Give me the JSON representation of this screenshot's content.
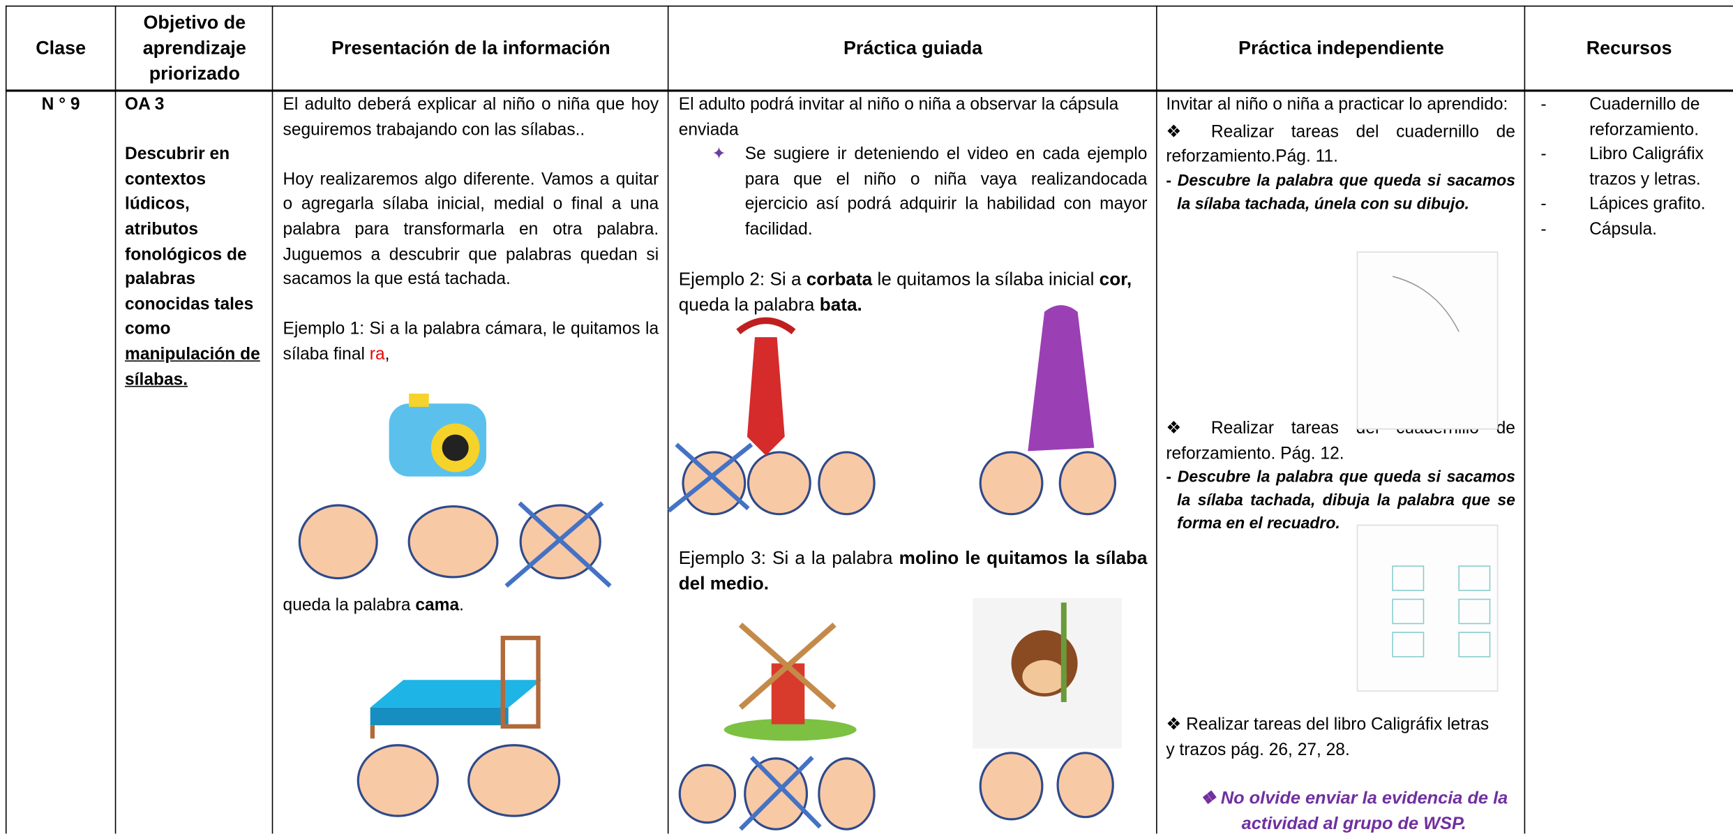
{
  "header": {
    "columns": [
      "Clase",
      "Objetivo de aprendizaje priorizado",
      "Presentación de la información",
      "Práctica guiada",
      "Práctica independiente",
      "Recursos"
    ]
  },
  "row": {
    "clase": "N ° 9",
    "objetivo": {
      "code": "OA 3",
      "text": "Descubrir en contextos lúdicos, atributos fonológicos de palabras conocidas tales como",
      "underlined": "manipulación de sílabas."
    },
    "presentacion": {
      "p1": "El adulto deberá explicar al niño o niña que hoy seguiremos trabajando con las sílabas..",
      "p2": "Hoy realizaremos algo diferente. Vamos a quitar o agregarla sílaba inicial, medial o final a una palabra para transformarla en otra palabra.  Juguemos a descubrir que palabras quedan si sacamos la que está tachada.",
      "p3": "Ejemplo 1: Si a la palabra cámara, le quitamos la sílaba final ",
      "p3_red": "ra",
      "p3_end": ",",
      "p4": "queda la palabra ",
      "p4_bold": "cama",
      "p4_end": "."
    },
    "guiada": {
      "p1": "El adulto podrá invitar al niño o niña a observar la cápsula enviada",
      "bullet": "Se sugiere ir deteniendo el video en cada ejemplo para que el niño o niña vaya realizandocada ejercicio así podrá adquirir la habilidad con mayor facilidad.",
      "ej2": [
        "Ejemplo 2: Si a ",
        "corbata",
        " le quitamos la sílaba inicial ",
        "cor,",
        " queda la palabra ",
        "bata."
      ],
      "ej3": [
        "Ejemplo 3: Si a la palabra ",
        "molino le quitamos la sílaba del medio."
      ]
    },
    "independiente": {
      "intro": "Invitar al niño o niña a practicar lo aprendido:",
      "task1": "Realizar tareas del cuadernillo de reforzamiento.Pág. 11.",
      "note1": "Descubre la palabra que queda si sacamos la sílaba tachada, únela con su dibujo.",
      "task2": "Realizar tareas del cuadernillo de reforzamiento. Pág. 12.",
      "note2": "Descubre la palabra que queda si sacamos la sílaba tachada, dibuja la palabra que se forma en el recuadro.",
      "task3": "Realizar tareas del libro Caligráfix letras y trazos pág. 26, 27, 28.",
      "reminder": "No olvide enviar la evidencia de la actividad al grupo de WSP."
    },
    "recursos": [
      "Cuadernillo de reforzamiento.",
      "Libro Caligráfix trazos y letras.",
      "Lápices grafito.",
      "Cápsula."
    ]
  }
}
